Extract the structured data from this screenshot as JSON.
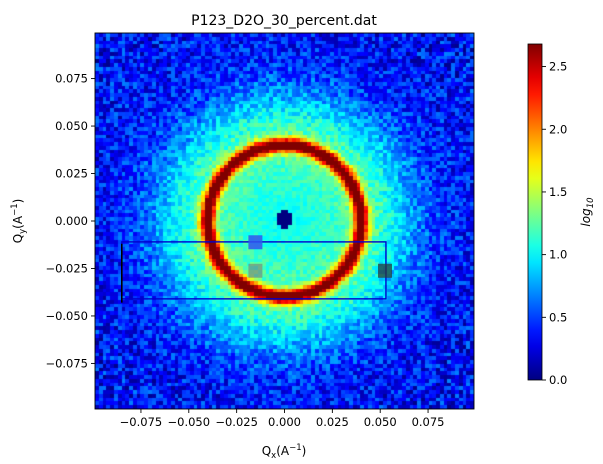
{
  "chart_data": {
    "type": "heatmap",
    "title": "P123_D2O_30_percent.dat",
    "xlabel": {
      "base": "Q",
      "sub": "x",
      "open": "(A",
      "sup": "−1",
      "close": ")"
    },
    "ylabel": {
      "base": "Q",
      "sub": "y",
      "open": "(A",
      "sup": "−1",
      "close": ")"
    },
    "xlim": [
      -0.099,
      0.099
    ],
    "ylim": [
      -0.099,
      0.099
    ],
    "xticks": [
      -0.075,
      -0.05,
      -0.025,
      0.0,
      0.025,
      0.05,
      0.075
    ],
    "xtick_labels": [
      "−0.075",
      "−0.050",
      "−0.025",
      "0.000",
      "0.025",
      "0.050",
      "0.075"
    ],
    "yticks": [
      -0.075,
      -0.05,
      -0.025,
      0.0,
      0.025,
      0.05,
      0.075
    ],
    "ytick_labels": [
      "−0.075",
      "−0.050",
      "−0.025",
      "0.000",
      "0.025",
      "0.050",
      "0.075"
    ],
    "colorbar": {
      "label": "log",
      "label_sub": "10",
      "range": [
        0.0,
        2.68
      ],
      "ticks": [
        0.0,
        0.5,
        1.0,
        1.5,
        2.0,
        2.5
      ],
      "tick_labels": [
        "0.0",
        "0.5",
        "1.0",
        "1.5",
        "2.0",
        "2.5"
      ],
      "colormap": "jet"
    },
    "pattern": {
      "ring_q": 0.04,
      "ring_peak_log": 2.55,
      "ring_width": 0.0038,
      "halo_log": 0.9,
      "halo_width": 0.03,
      "inner_log": 1.0,
      "background_log": 0.35,
      "beamstop_center": [
        0.0,
        0.001
      ],
      "beamstop_radius": 0.0048
    },
    "roi_box": {
      "color": "#0000cc",
      "x_range": [
        -0.085,
        0.053
      ],
      "y_range": [
        -0.041,
        -0.011
      ]
    },
    "edge_line": {
      "color": "#000000",
      "x": -0.085,
      "y_range": [
        -0.043,
        -0.012
      ]
    },
    "markers": [
      {
        "x": -0.0152,
        "y": -0.0112,
        "color": "#3355ee",
        "opacity": 0.85
      },
      {
        "x": -0.0152,
        "y": -0.0262,
        "color": "#7a7a7a",
        "opacity": 0.6
      },
      {
        "x": 0.0525,
        "y": -0.0262,
        "color": "#2a3a3a",
        "opacity": 0.75
      }
    ]
  }
}
